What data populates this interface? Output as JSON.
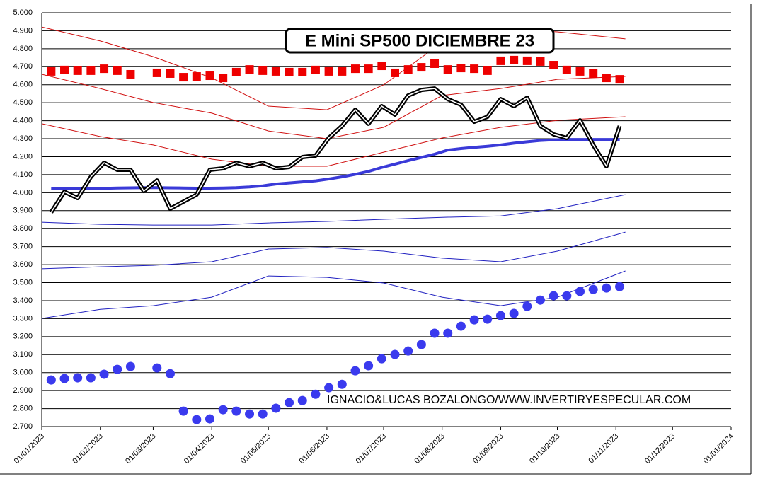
{
  "chart_data": {
    "type": "line",
    "title": "E Mini SP500 DICIEMBRE 23",
    "annotation": "IGNACIO&LUCAS BOZALONGO/WWW.INVERTIRYESPECULAR.COM",
    "grid": true,
    "xlim": [
      "2023-01-01",
      "2024-01-01"
    ],
    "xticks": [
      {
        "value": "2023-01-01",
        "label": "01/01/2023"
      },
      {
        "value": "2023-02-01",
        "label": "01/02/2023"
      },
      {
        "value": "2023-03-01",
        "label": "01/03/2023"
      },
      {
        "value": "2023-04-01",
        "label": "01/04/2023"
      },
      {
        "value": "2023-05-01",
        "label": "01/05/2023"
      },
      {
        "value": "2023-06-01",
        "label": "01/06/2023"
      },
      {
        "value": "2023-07-01",
        "label": "01/07/2023"
      },
      {
        "value": "2023-08-01",
        "label": "01/08/2023"
      },
      {
        "value": "2023-09-01",
        "label": "01/09/2023"
      },
      {
        "value": "2023-10-01",
        "label": "01/10/2023"
      },
      {
        "value": "2023-11-01",
        "label": "01/11/2023"
      },
      {
        "value": "2023-12-01",
        "label": "01/12/2023"
      },
      {
        "value": "2024-01-01",
        "label": "01/01/2024"
      }
    ],
    "ylim": [
      2700,
      5000
    ],
    "yticks": [
      {
        "value": 5000,
        "label": "5.000"
      },
      {
        "value": 4900,
        "label": "4.900"
      },
      {
        "value": 4800,
        "label": "4.800"
      },
      {
        "value": 4700,
        "label": "4.700"
      },
      {
        "value": 4600,
        "label": "4.600"
      },
      {
        "value": 4500,
        "label": "4.500"
      },
      {
        "value": 4400,
        "label": "4.400"
      },
      {
        "value": 4300,
        "label": "4.300"
      },
      {
        "value": 4200,
        "label": "4.200"
      },
      {
        "value": 4100,
        "label": "4.100"
      },
      {
        "value": 4000,
        "label": "4.000"
      },
      {
        "value": 3900,
        "label": "3.900"
      },
      {
        "value": 3800,
        "label": "3.800"
      },
      {
        "value": 3700,
        "label": "3.700"
      },
      {
        "value": 3600,
        "label": "3.600"
      },
      {
        "value": 3500,
        "label": "3.500"
      },
      {
        "value": 3400,
        "label": "3.400"
      },
      {
        "value": 3300,
        "label": "3.300"
      },
      {
        "value": 3200,
        "label": "3.200"
      },
      {
        "value": 3100,
        "label": "3.100"
      },
      {
        "value": 3000,
        "label": "3.000"
      },
      {
        "value": 2900,
        "label": "2.900"
      },
      {
        "value": 2800,
        "label": "2.800"
      },
      {
        "value": 2700,
        "label": "2.700"
      }
    ],
    "x": [
      "2023-01-06",
      "2023-01-13",
      "2023-01-20",
      "2023-01-27",
      "2023-02-03",
      "2023-02-10",
      "2023-02-17",
      "2023-02-24",
      "2023-03-03",
      "2023-03-10",
      "2023-03-17",
      "2023-03-24",
      "2023-03-31",
      "2023-04-07",
      "2023-04-14",
      "2023-04-21",
      "2023-04-28",
      "2023-05-05",
      "2023-05-12",
      "2023-05-19",
      "2023-05-26",
      "2023-06-02",
      "2023-06-09",
      "2023-06-16",
      "2023-06-23",
      "2023-06-30",
      "2023-07-07",
      "2023-07-14",
      "2023-07-21",
      "2023-07-28",
      "2023-08-04",
      "2023-08-11",
      "2023-08-18",
      "2023-08-25",
      "2023-09-01",
      "2023-09-08",
      "2023-09-15",
      "2023-09-22",
      "2023-09-29",
      "2023-10-06",
      "2023-10-13",
      "2023-10-20",
      "2023-10-27",
      "2023-11-03"
    ],
    "series": [
      {
        "kind": "line",
        "color": "#3a3ad8",
        "values": [
          4023,
          4022,
          4021,
          4022,
          4024,
          4026,
          4027,
          4028,
          4028,
          4027,
          4026,
          4025,
          4025,
          4026,
          4028,
          4032,
          4038,
          4048,
          4054,
          4060,
          4066,
          4076,
          4088,
          4102,
          4118,
          4140,
          4159,
          4178,
          4196,
          4214,
          4237,
          4245,
          4252,
          4258,
          4265,
          4275,
          4283,
          4290,
          4294,
          4296,
          4296,
          4296,
          4296,
          4296
        ]
      },
      {
        "kind": "price",
        "color": "#000000",
        "values": [
          3891,
          4005,
          3970,
          4088,
          4166,
          4127,
          4127,
          4009,
          4068,
          3911,
          3950,
          3989,
          4127,
          4135,
          4166,
          4147,
          4166,
          4135,
          4143,
          4198,
          4206,
          4304,
          4371,
          4461,
          4383,
          4481,
          4434,
          4540,
          4571,
          4579,
          4520,
          4489,
          4394,
          4422,
          4520,
          4481,
          4528,
          4371,
          4324,
          4304,
          4402,
          4265,
          4147,
          4371
        ]
      },
      {
        "kind": "square",
        "color": "#ee0000",
        "values": [
          4674,
          4682,
          4678,
          4678,
          4689,
          4678,
          4658,
          null,
          4666,
          4662,
          4642,
          4646,
          4650,
          4638,
          4670,
          4685,
          4678,
          4674,
          4670,
          4670,
          4682,
          4674,
          4674,
          4689,
          4689,
          4705,
          4666,
          4685,
          4697,
          4717,
          4685,
          4693,
          4689,
          4678,
          4733,
          4737,
          4733,
          4729,
          4709,
          4682,
          4674,
          4662,
          4638,
          4630
        ]
      },
      {
        "kind": "circle",
        "color": "#3a3aee",
        "values": [
          2959,
          2967,
          2971,
          2971,
          2991,
          3018,
          3034,
          null,
          3026,
          2994,
          2786,
          2739,
          2743,
          2794,
          2786,
          2770,
          2770,
          2802,
          2833,
          2845,
          2880,
          2916,
          2935,
          3010,
          3038,
          3077,
          3101,
          3120,
          3156,
          3219,
          3219,
          3258,
          3293,
          3297,
          3317,
          3329,
          3368,
          3403,
          3427,
          3427,
          3451,
          3462,
          3470,
          3478
        ]
      }
    ],
    "x_monthly": [
      "2023-01-01",
      "2023-02-01",
      "2023-03-01",
      "2023-04-01",
      "2023-05-01",
      "2023-06-01",
      "2023-07-01",
      "2023-08-01",
      "2023-09-01",
      "2023-10-01",
      "2023-11-06"
    ],
    "bands": [
      {
        "color": "#d01010",
        "values": [
          4921,
          4843,
          4756,
          4638,
          4481,
          4461,
          4599,
          4835,
          4913,
          4894,
          4855
        ]
      },
      {
        "color": "#d01010",
        "values": [
          4658,
          4579,
          4501,
          4442,
          4343,
          4300,
          4363,
          4540,
          4579,
          4630,
          4646
        ]
      },
      {
        "color": "#d01010",
        "values": [
          4383,
          4312,
          4265,
          4186,
          4147,
          4147,
          4225,
          4304,
          4363,
          4402,
          4422
        ]
      },
      {
        "color": "#2020c0",
        "values": [
          3836,
          3824,
          3820,
          3820,
          3832,
          3840,
          3852,
          3863,
          3871,
          3911,
          3989
        ]
      },
      {
        "color": "#2020c0",
        "values": [
          3577,
          3588,
          3596,
          3616,
          3687,
          3695,
          3675,
          3636,
          3616,
          3675,
          3781
        ]
      },
      {
        "color": "#2020c0",
        "values": [
          3301,
          3352,
          3372,
          3419,
          3537,
          3529,
          3498,
          3419,
          3372,
          3419,
          3565
        ]
      }
    ]
  }
}
